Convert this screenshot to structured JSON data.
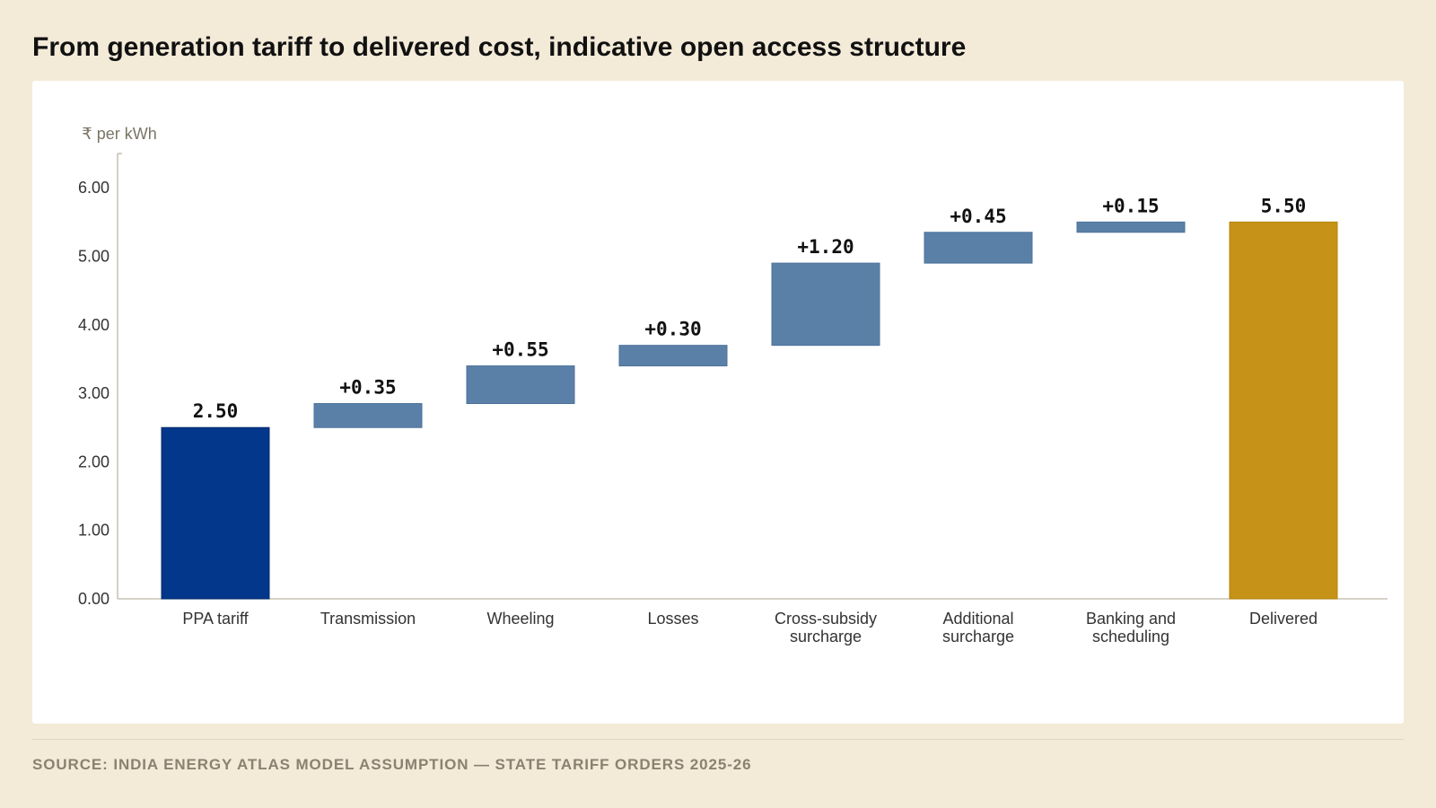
{
  "title": "From generation tariff to delivered cost, indicative open access structure",
  "source": "SOURCE: INDIA ENERGY ATLAS MODEL ASSUMPTION — STATE TARIFF ORDERS 2025-26",
  "colors": {
    "base": "#03378b",
    "step": "#5a80a8",
    "total": "#c69217",
    "page_background": "#f3ead8",
    "card_background": "#ffffff"
  },
  "chart_data": {
    "type": "bar",
    "subtype": "waterfall",
    "ylabel": "₹ per kWh",
    "ylim": [
      0,
      6.5
    ],
    "yticks": [
      0,
      1,
      2,
      3,
      4,
      5,
      6
    ],
    "ytick_labels": [
      "0.00",
      "1.00",
      "2.00",
      "3.00",
      "4.00",
      "5.00",
      "6.00"
    ],
    "grid": false,
    "legend": "none",
    "categories": [
      "PPA tariff",
      "Transmission",
      "Wheeling",
      "Losses",
      "Cross-subsidy surcharge",
      "Additional surcharge",
      "Banking and scheduling",
      "Delivered"
    ],
    "category_lines": [
      [
        "PPA tariff"
      ],
      [
        "Transmission"
      ],
      [
        "Wheeling"
      ],
      [
        "Losses"
      ],
      [
        "Cross-subsidy",
        "surcharge"
      ],
      [
        "Additional",
        "surcharge"
      ],
      [
        "Banking and",
        "scheduling"
      ],
      [
        "Delivered"
      ]
    ],
    "kinds": [
      "base",
      "step",
      "step",
      "step",
      "step",
      "step",
      "step",
      "total"
    ],
    "values": [
      2.5,
      0.35,
      0.55,
      0.3,
      1.2,
      0.45,
      0.15,
      5.5
    ],
    "data_labels": [
      "2.50",
      "+0.35",
      "+0.55",
      "+0.30",
      "+1.20",
      "+0.45",
      "+0.15",
      "5.50"
    ]
  }
}
